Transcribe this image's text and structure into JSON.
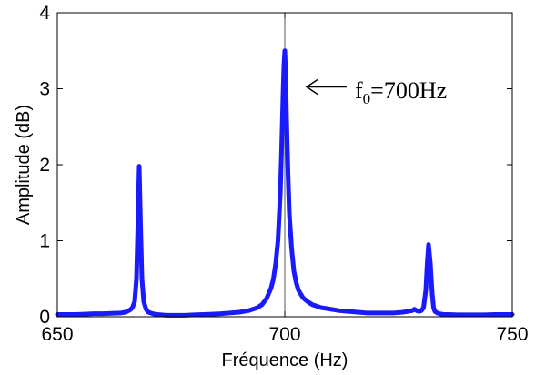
{
  "chart_data": {
    "type": "line",
    "title": "",
    "xlabel": "Fréquence (Hz)",
    "ylabel": "Amplitude (dB)",
    "xlim": [
      650,
      750
    ],
    "ylim": [
      0,
      4
    ],
    "xticks": [
      "650",
      "700",
      "750"
    ],
    "yticks": [
      "0",
      "1",
      "2",
      "3",
      "4"
    ],
    "grid": false,
    "legend": "none",
    "series_color": "#1a1aff",
    "reference_line_x": 700,
    "annotation": {
      "prefix": "f",
      "subscript": "0",
      "suffix": "=700Hz",
      "arrow_target": [
        700.8,
        3.0
      ]
    },
    "series": [
      {
        "x": [
          650,
          652,
          654,
          656,
          658,
          660,
          662,
          664,
          665,
          666,
          666.5,
          667,
          667.4,
          667.7,
          668,
          668.3,
          668.6,
          669,
          669.5,
          670,
          671,
          672,
          674,
          676,
          678,
          680,
          682,
          684,
          686,
          688,
          690,
          692,
          694,
          695,
          696,
          697,
          697.5,
          698,
          698.5,
          699,
          699.3,
          699.6,
          699.8,
          700,
          700.2,
          700.4,
          700.7,
          701,
          701.5,
          702,
          702.5,
          703,
          704,
          705,
          706,
          708,
          710,
          712,
          714,
          716,
          718,
          720,
          722,
          724,
          726,
          727,
          728,
          728.5,
          729,
          729.5,
          730,
          730.5,
          731,
          731.3,
          731.6,
          732,
          732.4,
          732.7,
          733,
          733.5,
          734,
          735,
          736,
          738,
          740,
          742,
          744,
          746,
          748,
          750
        ],
        "y": [
          0.03,
          0.03,
          0.03,
          0.035,
          0.04,
          0.04,
          0.045,
          0.05,
          0.06,
          0.09,
          0.12,
          0.2,
          0.5,
          1.2,
          1.98,
          1.2,
          0.5,
          0.2,
          0.1,
          0.06,
          0.04,
          0.03,
          0.02,
          0.02,
          0.02,
          0.025,
          0.03,
          0.035,
          0.04,
          0.05,
          0.06,
          0.08,
          0.12,
          0.16,
          0.24,
          0.38,
          0.5,
          0.7,
          1.0,
          1.6,
          2.2,
          2.9,
          3.3,
          3.5,
          3.2,
          2.6,
          1.9,
          1.35,
          0.9,
          0.6,
          0.45,
          0.35,
          0.25,
          0.2,
          0.16,
          0.12,
          0.1,
          0.08,
          0.07,
          0.06,
          0.05,
          0.05,
          0.05,
          0.05,
          0.06,
          0.07,
          0.08,
          0.1,
          0.08,
          0.07,
          0.08,
          0.12,
          0.35,
          0.7,
          0.95,
          0.7,
          0.3,
          0.12,
          0.07,
          0.05,
          0.04,
          0.03,
          0.03,
          0.025,
          0.025,
          0.025,
          0.025,
          0.03,
          0.03,
          0.03
        ]
      }
    ]
  }
}
